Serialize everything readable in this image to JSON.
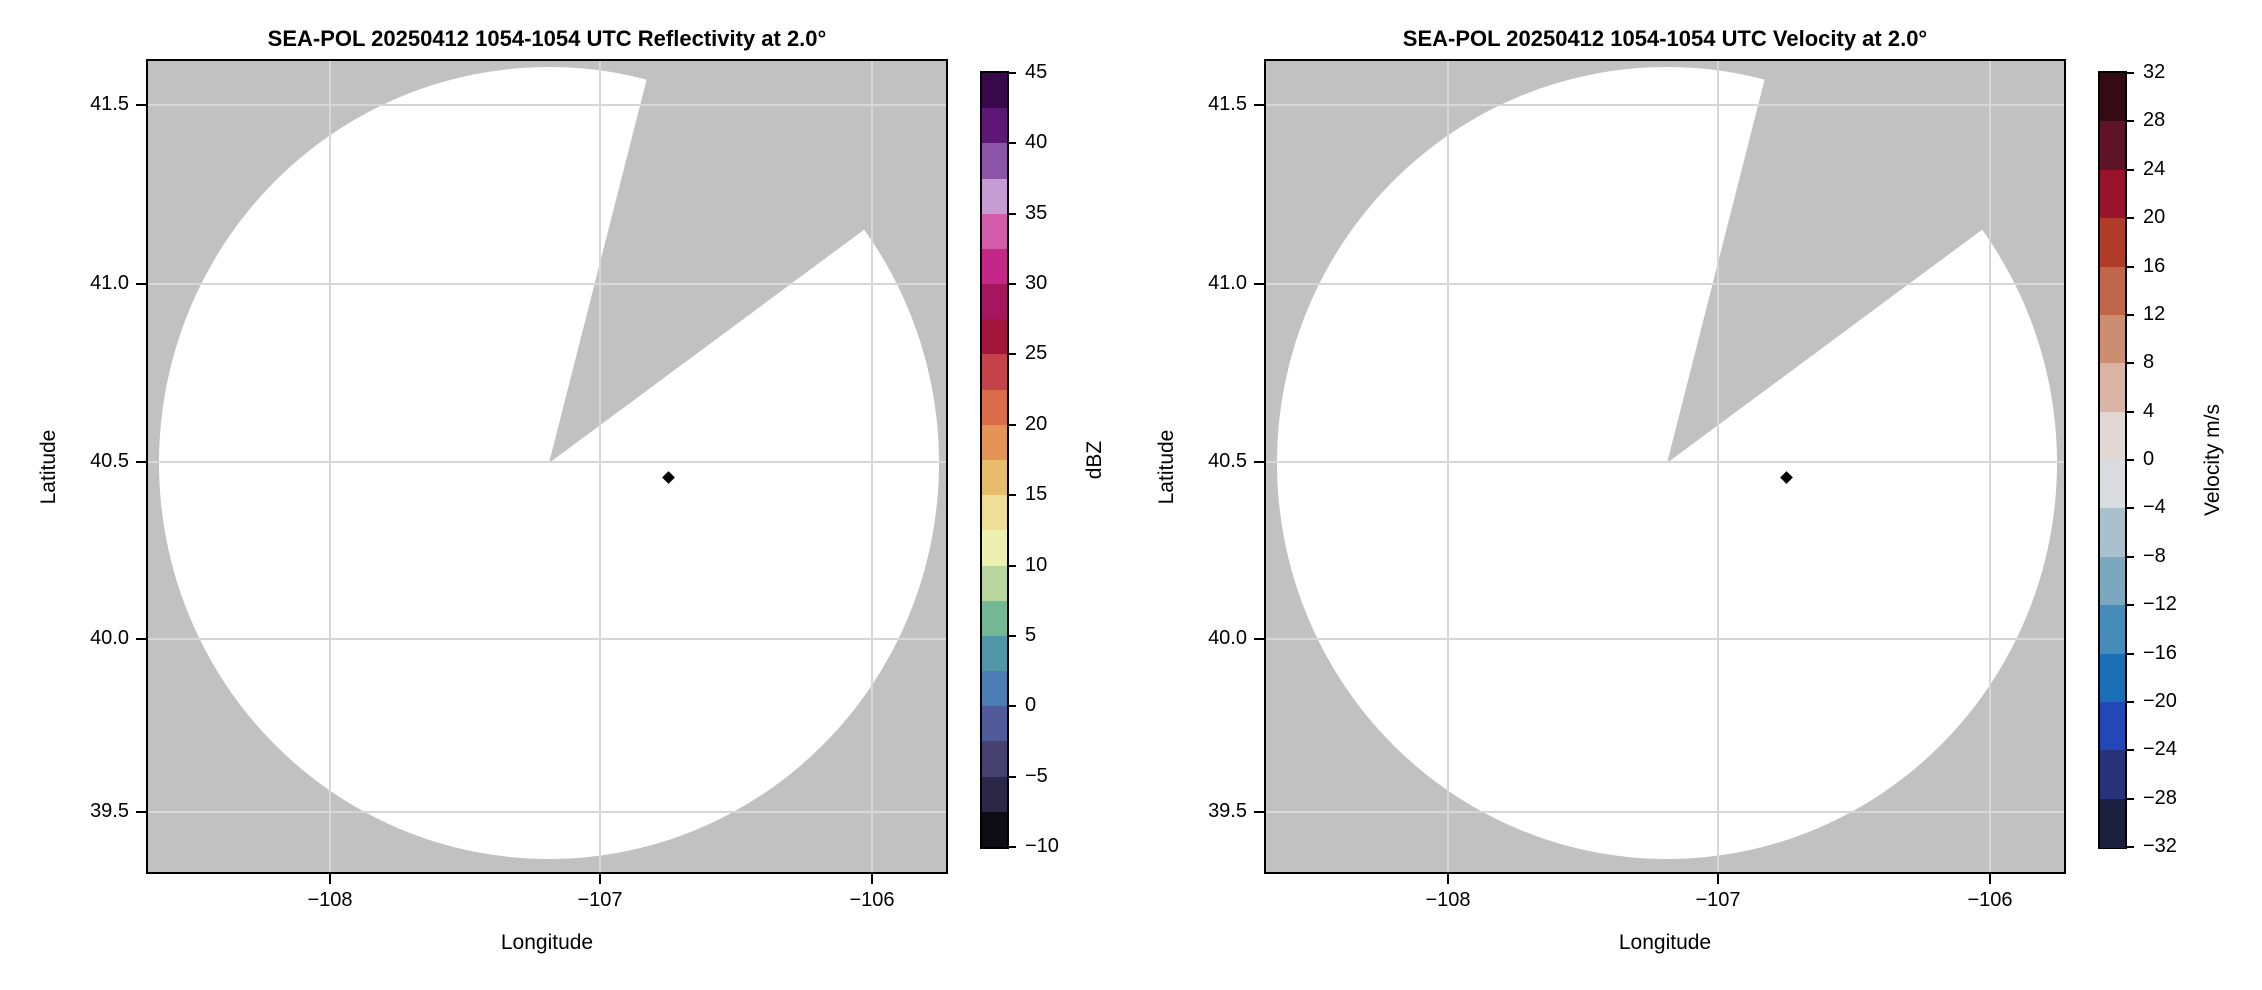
{
  "figure": {
    "background_color": "#ffffff",
    "no_data_color": "#c1c1c1",
    "scan_area_color": "#ffffff",
    "gridline_color": "#d7d7d7",
    "panels": [
      {
        "id": "reflectivity",
        "title": "SEA-POL 20250412 1054-1054 UTC Reflectivity at 2.0°",
        "xlabel": "Longitude",
        "ylabel": "Latitude",
        "xtick_labels": [
          "−108",
          "−107",
          "−106"
        ],
        "ytick_labels": [
          "41.5",
          "41.0",
          "40.5",
          "40.0",
          "39.5"
        ],
        "colorbar_label": "dBZ",
        "colorbar_tick_labels": [
          "45",
          "40",
          "35",
          "30",
          "25",
          "20",
          "15",
          "10",
          "5",
          "0",
          "−5",
          "−10"
        ]
      },
      {
        "id": "velocity",
        "title": "SEA-POL 20250412 1054-1054 UTC Velocity at 2.0°",
        "xlabel": "Longitude",
        "ylabel": "Latitude",
        "xtick_labels": [
          "−108",
          "−107",
          "−106"
        ],
        "ytick_labels": [
          "41.5",
          "41.0",
          "40.5",
          "40.0",
          "39.5"
        ],
        "colorbar_label": "Velocity m/s",
        "colorbar_tick_labels": [
          "32",
          "28",
          "24",
          "20",
          "16",
          "12",
          "8",
          "4",
          "0",
          "−4",
          "−8",
          "−12",
          "−16",
          "−20",
          "−24",
          "−28",
          "−32"
        ]
      }
    ]
  },
  "chart_data": [
    {
      "type": "radar_ppi",
      "radar_name": "SEA-POL",
      "field": "Reflectivity",
      "date": "20250412",
      "time_utc": "1054-1054",
      "elevation_deg": 2.0,
      "title": "SEA-POL 20250412 1054-1054 UTC Reflectivity at 2.0°",
      "xlabel": "Longitude",
      "ylabel": "Latitude",
      "xlim": [
        -108.68,
        -105.72
      ],
      "ylim": [
        39.33,
        41.63
      ],
      "xticks": [
        -108,
        -107,
        -106
      ],
      "yticks": [
        39.5,
        40.0,
        40.5,
        41.0,
        41.5
      ],
      "grid": true,
      "radar_location": {
        "lon": -107.18,
        "lat": 40.5
      },
      "scan_radius_deg_lat": 1.13,
      "blocked_sector_azimuth_deg": [
        14,
        53
      ],
      "marker_location": {
        "lon": -106.76,
        "lat": 40.47
      },
      "echoes": [],
      "colorbar": {
        "label": "dBZ",
        "min": -10,
        "max": 45,
        "tick_step": 5,
        "band_step": 2.5,
        "colors_top_to_bottom": [
          "#38084a",
          "#5e1677",
          "#8c55a8",
          "#c79bd4",
          "#d45daa",
          "#c42787",
          "#a4175e",
          "#a3163c",
          "#c4424a",
          "#da6c49",
          "#e39355",
          "#e7bc6d",
          "#eede96",
          "#eff0b0",
          "#b8d69e",
          "#74b795",
          "#4f97a8",
          "#4a7cb5",
          "#4f5b9b",
          "#46406f",
          "#2c2747",
          "#0e0d16"
        ]
      }
    },
    {
      "type": "radar_ppi",
      "radar_name": "SEA-POL",
      "field": "Velocity",
      "date": "20250412",
      "time_utc": "1054-1054",
      "elevation_deg": 2.0,
      "title": "SEA-POL 20250412 1054-1054 UTC Velocity at 2.0°",
      "xlabel": "Longitude",
      "ylabel": "Latitude",
      "xlim": [
        -108.68,
        -105.72
      ],
      "ylim": [
        39.33,
        41.63
      ],
      "xticks": [
        -108,
        -107,
        -106
      ],
      "yticks": [
        39.5,
        40.0,
        40.5,
        41.0,
        41.5
      ],
      "grid": true,
      "radar_location": {
        "lon": -107.18,
        "lat": 40.5
      },
      "scan_radius_deg_lat": 1.13,
      "blocked_sector_azimuth_deg": [
        14,
        53
      ],
      "marker_location": {
        "lon": -106.76,
        "lat": 40.47
      },
      "echoes": [],
      "colorbar": {
        "label": "Velocity m/s",
        "min": -32,
        "max": 32,
        "tick_step": 4,
        "band_step": 4,
        "colors_top_to_bottom": [
          "#340a14",
          "#5e1426",
          "#98142c",
          "#af3b28",
          "#c0664a",
          "#cc8e71",
          "#dab4a5",
          "#e2d8d3",
          "#dadde0",
          "#a9c1cc",
          "#7ba8be",
          "#478dbb",
          "#1a6fb6",
          "#2447b8",
          "#273278",
          "#1b1f40"
        ]
      }
    }
  ]
}
